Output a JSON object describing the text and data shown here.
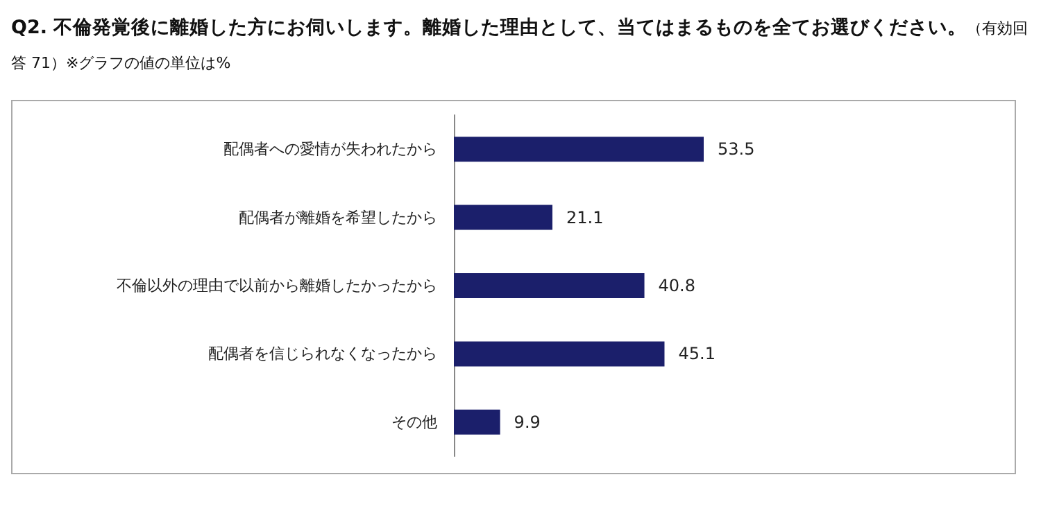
{
  "chart_data": {
    "type": "bar",
    "orientation": "horizontal",
    "title": "Q2.  不倫発覚後に離婚した方にお伺いします。離婚した理由として、当てはまるものを全てお選びください。",
    "subtitle": "（有効回答 71）※グラフの値の単位は%",
    "categories": [
      "配偶者への愛情が失われたから",
      "配偶者が離婚を希望したから",
      "不倫以外の理由で以前から離婚したかったから",
      "配偶者を信じられなくなったから",
      "その他"
    ],
    "values": [
      53.5,
      21.1,
      40.8,
      45.1,
      9.9
    ],
    "color": "#1b1f6b",
    "data_labels": true
  }
}
